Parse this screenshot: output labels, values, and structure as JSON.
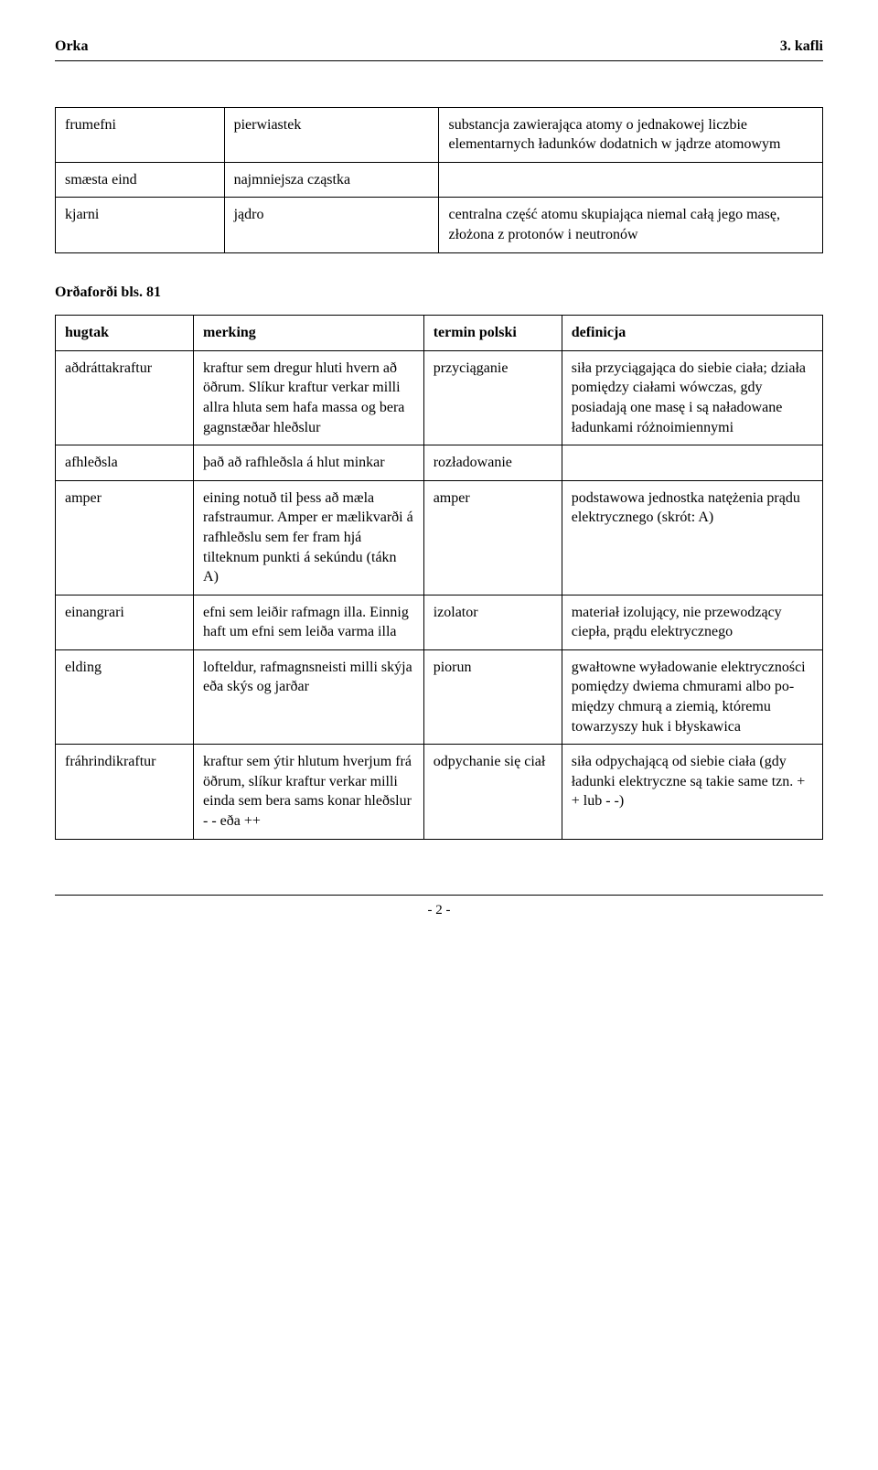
{
  "header": {
    "left": "Orka",
    "right": "3. kafli"
  },
  "table1": {
    "cols": [
      "c1",
      "c2",
      "c3"
    ],
    "rows": [
      [
        "frumefni",
        "pierwiastek",
        "substancja zawierająca atomy o jednakowej liczbie elementarnych ładunków dodatnich w jądrze atomowym"
      ],
      [
        "smæsta eind",
        "najmniejsza cząstka",
        ""
      ],
      [
        "kjarni",
        "jądro",
        "centralna część atomu skupiająca niemal całą jego masę, złożona z protonów i neutronów"
      ]
    ]
  },
  "section_heading": "Orðaforði bls. 81",
  "table2": {
    "cols": [
      "c1",
      "c2",
      "c3",
      "c4"
    ],
    "header": [
      "hugtak",
      "merking",
      "termin polski",
      "definicja"
    ],
    "rows": [
      [
        "aðdráttakraftur",
        "kraftur sem dregur hluti hvern að öðrum. Slíkur kraftur verkar milli allra hluta sem hafa massa og bera gagnstæðar hleðslur",
        "przyciąganie",
        "siła przyciągająca do siebie ciała; działa pomiędzy ciałami wówczas, gdy posiadają one masę i są naładowane ładunkami różnoimiennymi"
      ],
      [
        "afhleðsla",
        "það að rafhleðsla á hlut minkar",
        "rozładowanie",
        ""
      ],
      [
        "amper",
        "eining notuð til þess að mæla rafstraumur. Amper er mælikvarði á rafhleðslu sem fer fram hjá tilteknum punkti á sekúndu (tákn A)",
        "amper",
        "podstawowa jednostka natężenia prądu elektrycznego (skrót: A)"
      ],
      [
        "einangrari",
        "efni sem leiðir rafmagn illa. Einnig haft um efni sem leiða varma illa",
        "izolator",
        "materiał izolujący, nie przewodzący ciepła, prądu elektrycznego"
      ],
      [
        "elding",
        "lofteldur, rafmagnsneisti milli skýja eða skýs og jarðar",
        "piorun",
        "gwałtowne wyładowanie elektryczności pomiędzy dwiema chmurami albo po-między chmurą a ziemią, któremu towarzyszy huk i błyskawica"
      ],
      [
        "fráhrindikraftur",
        "kraftur sem ýtir hlutum hverjum frá öðrum, slíkur kraftur verkar milli einda sem bera sams konar hleðslur - - eða ++",
        "odpychanie się ciał",
        "siła odpychającą od siebie ciała (gdy ładunki elektryczne są takie same tzn. + + lub - -)"
      ]
    ]
  },
  "footer": {
    "page": "- 2 -"
  }
}
